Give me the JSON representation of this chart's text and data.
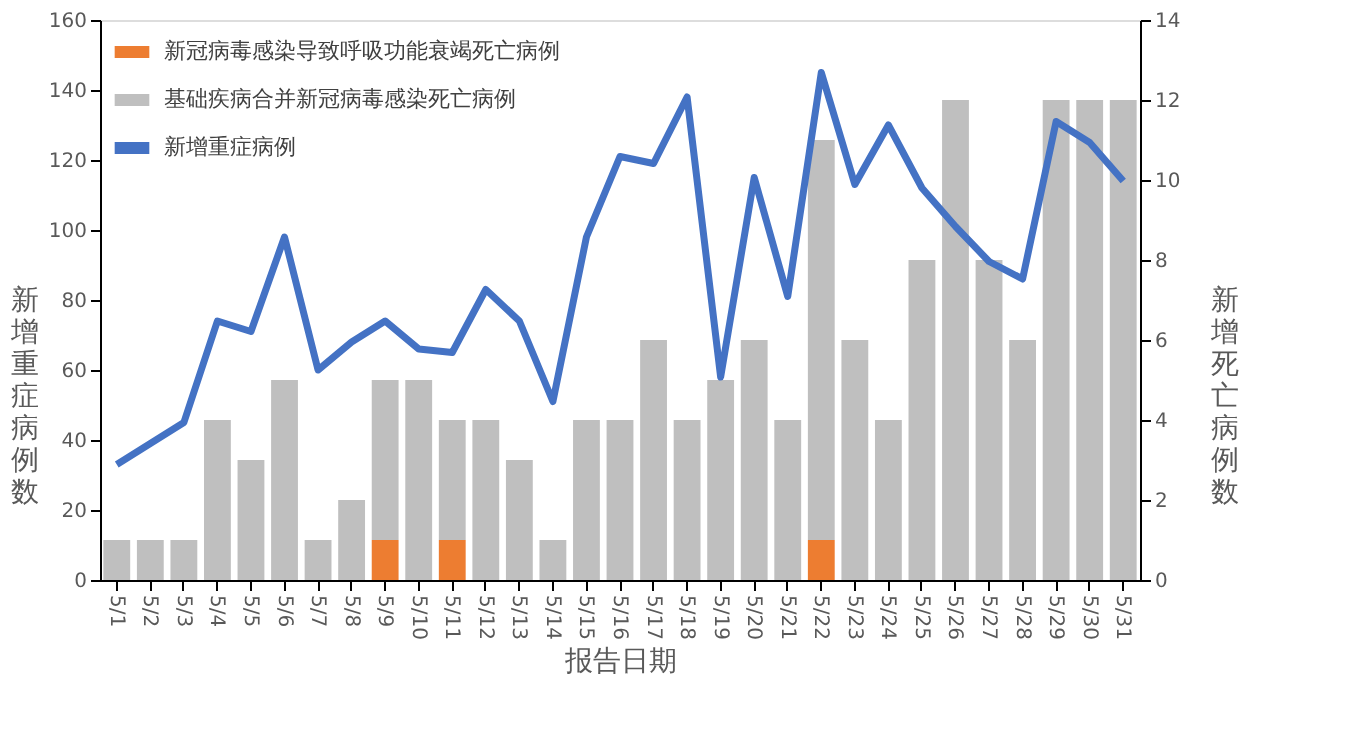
{
  "chart_data": {
    "type": "bar",
    "stacked": true,
    "xlabel": "报告日期",
    "ylabel": "新增重症病例数",
    "y2label": "新增死亡病例数",
    "categories": [
      "5/1",
      "5/2",
      "5/3",
      "5/4",
      "5/5",
      "5/6",
      "5/7",
      "5/8",
      "5/9",
      "5/10",
      "5/11",
      "5/12",
      "5/13",
      "5/14",
      "5/15",
      "5/16",
      "5/17",
      "5/18",
      "5/19",
      "5/20",
      "5/21",
      "5/22",
      "5/23",
      "5/24",
      "5/25",
      "5/26",
      "5/27",
      "5/28",
      "5/29",
      "5/30",
      "5/31"
    ],
    "series": [
      {
        "name": "新冠病毒感染导致呼吸功能衰竭死亡病例",
        "color": "#ed7d31",
        "axis": "y2",
        "values": [
          null,
          null,
          null,
          null,
          null,
          null,
          null,
          null,
          1,
          null,
          1,
          null,
          null,
          null,
          null,
          null,
          null,
          null,
          null,
          null,
          null,
          1,
          null,
          null,
          null,
          null,
          null,
          null,
          null,
          null,
          null
        ]
      },
      {
        "name": "基础疾病合并新冠病毒感染死亡病例",
        "color": "#bfbfbf",
        "axis": "y2",
        "values": [
          1,
          1,
          1,
          4,
          3,
          5,
          1,
          2,
          4,
          5,
          3,
          4,
          3,
          1,
          4,
          4,
          6,
          4,
          5,
          6,
          4,
          10,
          6,
          4,
          8,
          12,
          8,
          6,
          12,
          12,
          12
        ]
      },
      {
        "name": "新增重症病例",
        "color": "#4472c4",
        "type": "line",
        "values": [
          33,
          39,
          45,
          74,
          71,
          98,
          60,
          68,
          74,
          66,
          65,
          83,
          74,
          51,
          98,
          121,
          119,
          138,
          58,
          115,
          81,
          145,
          113,
          130,
          112,
          101,
          91,
          86,
          131,
          125,
          114
        ]
      }
    ],
    "ylim": [
      0,
      160
    ],
    "yticks": [
      0,
      20,
      40,
      60,
      80,
      100,
      120,
      140,
      160
    ],
    "y2lim": [
      0,
      14
    ],
    "y2ticks": [
      0,
      2,
      4,
      6,
      8,
      10,
      12,
      14
    ],
    "grid": false,
    "legend": "top left",
    "marker": "none",
    "line_style": "solid"
  }
}
